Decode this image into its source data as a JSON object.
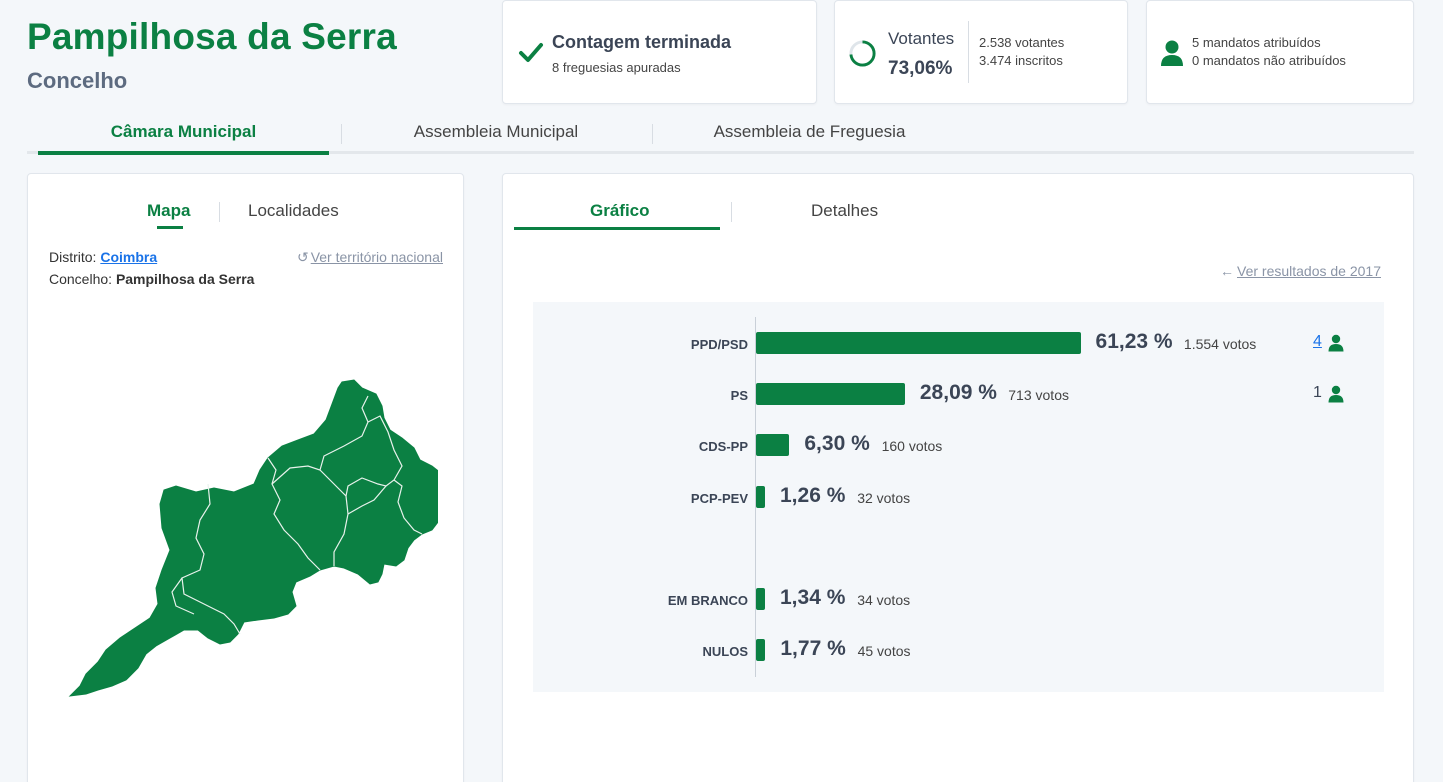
{
  "header": {
    "title": "Pampilhosa da Serra",
    "subtitle": "Concelho"
  },
  "status": {
    "icon": "check-icon",
    "title": "Contagem terminada",
    "sub": "8 freguesias apuradas"
  },
  "turnout": {
    "label": "Votantes",
    "percent": "73,06%",
    "percent_value": 73.06,
    "voters": "2.538 votantes",
    "registered": "3.474 inscritos"
  },
  "mandates_summary": {
    "assigned": "5 mandatos atribuídos",
    "unassigned": "0 mandatos não atribuídos"
  },
  "main_tabs": [
    {
      "label": "Câmara Municipal",
      "active": true
    },
    {
      "label": "Assembleia Municipal",
      "active": false
    },
    {
      "label": "Assembleia de Freguesia",
      "active": false
    }
  ],
  "left_panel": {
    "tabs": [
      {
        "label": "Mapa",
        "active": true
      },
      {
        "label": "Localidades",
        "active": false
      }
    ],
    "district_label": "Distrito:",
    "district_value": "Coimbra",
    "county_label": "Concelho:",
    "county_value": "Pampilhosa da Serra",
    "national_link": "Ver território nacional"
  },
  "right_panel": {
    "tabs": [
      {
        "label": "Gráfico",
        "active": true
      },
      {
        "label": "Detalhes",
        "active": false
      }
    ],
    "previous_link": "Ver resultados de 2017"
  },
  "colors": {
    "brand_green": "#0b8043",
    "link_blue": "#1a73e8",
    "muted": "#8a94a6"
  },
  "chart_data": {
    "type": "bar",
    "orientation": "horizontal",
    "categories": [
      "PPD/PSD",
      "PS",
      "CDS-PP",
      "PCP-PEV",
      "EM BRANCO",
      "NULOS"
    ],
    "values": [
      61.23,
      28.09,
      6.3,
      1.26,
      1.34,
      1.77
    ],
    "pct_labels": [
      "61,23 %",
      "28,09 %",
      "6,30 %",
      "1,26 %",
      "1,34 %",
      "1,77 %"
    ],
    "votes_labels": [
      "1.554 votos",
      "713 votos",
      "160 votos",
      "32 votos",
      "34 votos",
      "45 votos"
    ],
    "mandates": [
      "4",
      "1",
      "",
      "",
      "",
      ""
    ],
    "xlim": [
      0,
      100
    ]
  }
}
